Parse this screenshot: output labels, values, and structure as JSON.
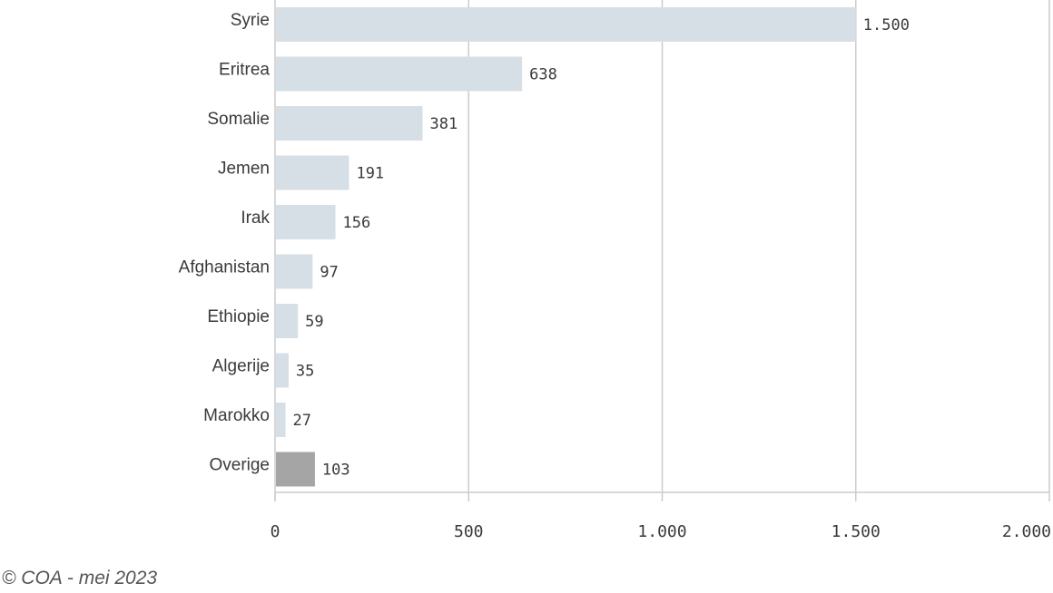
{
  "chart_data": {
    "type": "bar",
    "orientation": "horizontal",
    "categories": [
      "Syrie",
      "Eritrea",
      "Somalie",
      "Jemen",
      "Irak",
      "Afghanistan",
      "Ethiopie",
      "Algerije",
      "Marokko",
      "Overige"
    ],
    "values": [
      1500,
      638,
      381,
      191,
      156,
      97,
      59,
      35,
      27,
      103
    ],
    "value_labels": [
      "1.500",
      "638",
      "381",
      "191",
      "156",
      "97",
      "59",
      "35",
      "27",
      "103"
    ],
    "xlim": [
      0,
      2000
    ],
    "x_ticks": [
      0,
      500,
      1000,
      1500,
      2000
    ],
    "x_tick_labels": [
      "0",
      "500",
      "1.000",
      "1.500",
      "2.000"
    ],
    "grid": "vertical",
    "legend": "none",
    "colors": {
      "bar": "#d6dfe6",
      "highlight_bar": "#a5a5a5",
      "grid": "#cccccc",
      "text": "#3a3a3a"
    },
    "highlight_category": "Overige"
  },
  "footnote": "© COA - mei 2023"
}
